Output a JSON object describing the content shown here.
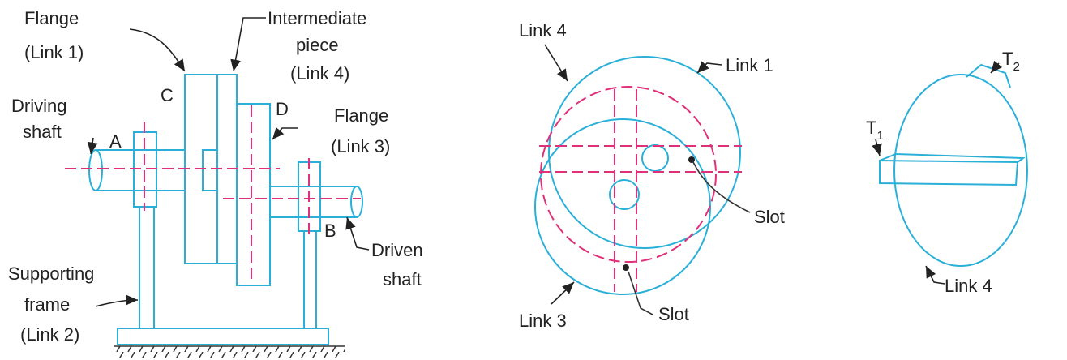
{
  "labels": [
    {
      "lines": [
        "Flange",
        "(Link 1)"
      ]
    },
    {
      "lines": [
        "Intermediate",
        "piece",
        "(Link 4)"
      ]
    },
    {
      "lines": [
        "C"
      ]
    },
    {
      "lines": [
        "D"
      ]
    },
    {
      "lines": [
        "Flange",
        "(Link 3)"
      ]
    },
    {
      "lines": [
        "Driving",
        "shaft"
      ]
    },
    {
      "lines": [
        "A"
      ]
    },
    {
      "lines": [
        "B"
      ]
    },
    {
      "lines": [
        "Driven",
        "shaft"
      ]
    },
    {
      "lines": [
        "Supporting",
        "frame",
        "(Link 2)"
      ]
    },
    {
      "lines": [
        "Link 4"
      ]
    },
    {
      "lines": [
        "Link 1"
      ]
    },
    {
      "lines": [
        "Slot"
      ]
    },
    {
      "lines": [
        "Link 3"
      ]
    },
    {
      "lines": [
        "Slot"
      ]
    },
    {
      "lines": [
        "T"
      ],
      "sub": "1"
    },
    {
      "lines": [
        "T"
      ],
      "sub": "2"
    },
    {
      "lines": [
        "Link 4"
      ]
    }
  ]
}
